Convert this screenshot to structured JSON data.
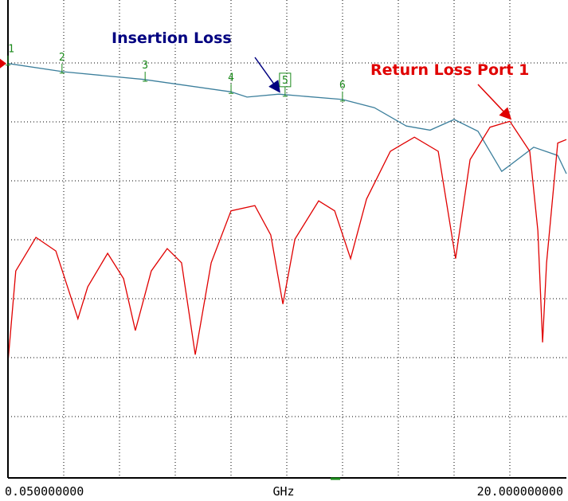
{
  "chart_data": {
    "type": "line",
    "xlabel": "GHz",
    "xlim": [
      0.05,
      20
    ],
    "xticks": [
      {
        "value": 0.05,
        "label": "0.050000000"
      },
      {
        "value": 20,
        "label": "20.000000000"
      }
    ],
    "ylim": [
      0,
      8
    ],
    "grid": true,
    "annotations": [
      {
        "text": "Insertion Loss",
        "color": "#000080",
        "series": 0,
        "x": 9.73
      },
      {
        "text": "Return Loss Port 1",
        "color": "#e00000",
        "series": 1,
        "x": 17.98
      }
    ],
    "markers": [
      {
        "label": "1",
        "x": 0.05
      },
      {
        "label": "2",
        "x": 1.98
      },
      {
        "label": "3",
        "x": 4.95
      },
      {
        "label": "4",
        "x": 8.02
      },
      {
        "label": "5",
        "x": 9.95
      },
      {
        "label": "6",
        "x": 12.0
      }
    ],
    "active_marker": 4,
    "series": [
      {
        "name": "Insertion Loss",
        "color": "#3c7f9c",
        "x": [
          0.05,
          2.04,
          4.89,
          8.02,
          8.59,
          9.73,
          12.0,
          13.14,
          14.28,
          15.13,
          15.99,
          16.84,
          17.69,
          18.83,
          19.69,
          20.0
        ],
        "values": [
          6.99,
          6.85,
          6.72,
          6.51,
          6.42,
          6.47,
          6.38,
          6.24,
          5.93,
          5.86,
          6.04,
          5.84,
          5.16,
          5.57,
          5.43,
          5.12
        ]
      },
      {
        "name": "Return Loss Port 1",
        "color": "#e00000",
        "x": [
          0.05,
          0.33,
          1.05,
          1.76,
          2.55,
          2.9,
          3.61,
          4.18,
          4.6,
          5.17,
          5.74,
          6.25,
          6.74,
          7.31,
          8.02,
          8.87,
          9.44,
          9.87,
          10.3,
          11.15,
          11.72,
          12.29,
          12.86,
          13.71,
          14.57,
          15.42,
          16.04,
          16.56,
          17.27,
          17.98,
          18.69,
          18.98,
          19.15,
          19.29,
          19.69,
          20.0
        ],
        "values": [
          1.92,
          3.47,
          4.04,
          3.81,
          2.66,
          3.2,
          3.77,
          3.34,
          2.46,
          3.47,
          3.85,
          3.61,
          2.05,
          3.61,
          4.49,
          4.58,
          4.08,
          2.91,
          4.01,
          4.66,
          4.49,
          3.68,
          4.69,
          5.5,
          5.74,
          5.5,
          3.68,
          5.36,
          5.91,
          6.01,
          5.5,
          4.15,
          2.26,
          3.61,
          5.64,
          5.7
        ]
      }
    ]
  }
}
